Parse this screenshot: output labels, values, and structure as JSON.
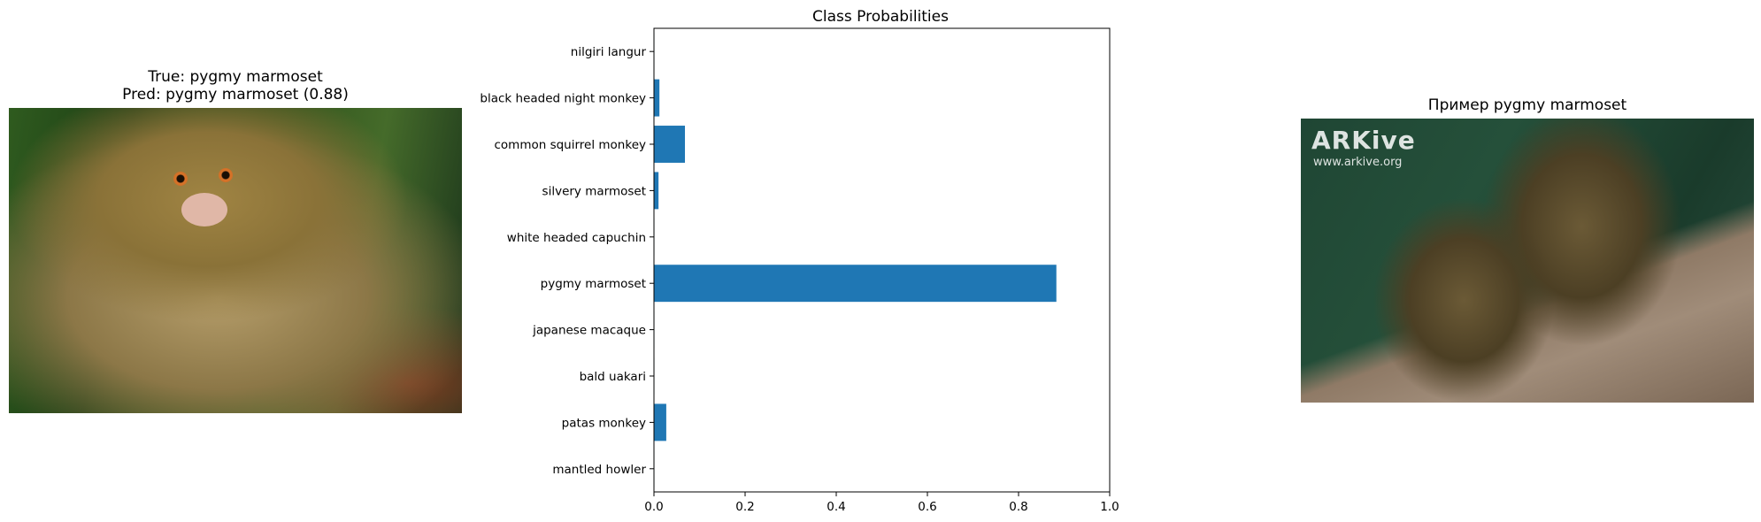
{
  "left_panel": {
    "title_line1": "True: pygmy marmoset",
    "title_line2": "Pred: pygmy marmoset (0.88)"
  },
  "right_panel": {
    "title": "Пример pygmy marmoset",
    "watermark_brand": "ARKive",
    "watermark_url": "www.arkive.org"
  },
  "chart_data": {
    "type": "bar",
    "orientation": "horizontal",
    "title": "Class Probabilities",
    "categories": [
      "nilgiri langur",
      "black headed night monkey",
      "common squirrel monkey",
      "silvery marmoset",
      "white headed capuchin",
      "pygmy marmoset",
      "japanese macaque",
      "bald uakari",
      "patas monkey",
      "mantled howler"
    ],
    "values": [
      0.001,
      0.012,
      0.068,
      0.01,
      0.001,
      0.883,
      0.001,
      0.001,
      0.027,
      0.001
    ],
    "xlim": [
      0,
      1.0
    ],
    "xticks": [
      0.0,
      0.2,
      0.4,
      0.6,
      0.8,
      1.0
    ],
    "xtick_labels": [
      "0.0",
      "0.2",
      "0.4",
      "0.6",
      "0.8",
      "1.0"
    ],
    "xlabel": "",
    "ylabel": "",
    "bar_color": "#1f77b4",
    "grid": false
  }
}
